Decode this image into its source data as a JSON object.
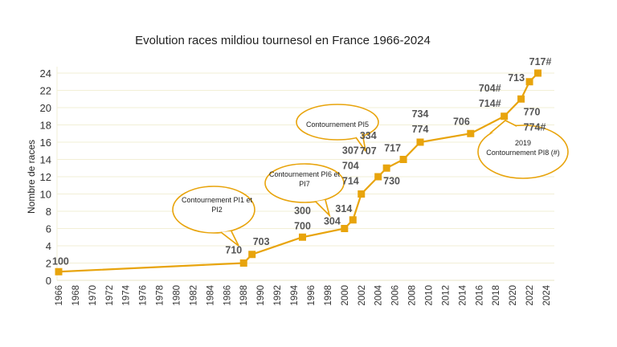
{
  "chart_data": {
    "type": "line",
    "title": "Evolution races mildiou tournesol en France 1966-2024",
    "xlabel": "",
    "ylabel": "Nombre de races",
    "xlim": [
      1966,
      2024
    ],
    "ylim": [
      0,
      24
    ],
    "xticks": [
      1966,
      1968,
      1970,
      1972,
      1974,
      1976,
      1978,
      1980,
      1982,
      1984,
      1986,
      1988,
      1990,
      1992,
      1994,
      1996,
      1998,
      2000,
      2002,
      2004,
      2006,
      2008,
      2010,
      2012,
      2014,
      2016,
      2018,
      2020,
      2022,
      2024
    ],
    "yticks": [
      0,
      2,
      4,
      6,
      8,
      10,
      12,
      14,
      16,
      18,
      20,
      22,
      24
    ],
    "grid": "horizontal",
    "series": [
      {
        "name": "Nombre de races",
        "color": "#e8a40c",
        "marker": "square",
        "x": [
          1966,
          1988,
          1989,
          1995,
          2000,
          2001,
          2002,
          2004,
          2005,
          2007,
          2009,
          2015,
          2019,
          2021,
          2022,
          2023
        ],
        "y": [
          1,
          2,
          3,
          5,
          6,
          7,
          10,
          12,
          13,
          14,
          16,
          17,
          19,
          21,
          23,
          24
        ]
      }
    ],
    "point_labels": [
      {
        "x": 1966,
        "y": 1,
        "lines": [
          "100"
        ],
        "pos": "above"
      },
      {
        "x": 1988,
        "y": 2,
        "lines": [
          "710"
        ],
        "pos": "above-left"
      },
      {
        "x": 1989,
        "y": 3,
        "lines": [
          "703"
        ],
        "pos": "above"
      },
      {
        "x": 1995,
        "y": 5,
        "lines": [
          "300",
          "700"
        ],
        "pos": "above"
      },
      {
        "x": 2000,
        "y": 6,
        "lines": [
          "304"
        ],
        "pos": "above-left"
      },
      {
        "x": 2001,
        "y": 7,
        "lines": [
          "314"
        ],
        "pos": "above-left"
      },
      {
        "x": 2002,
        "y": 10,
        "lines": [
          "307",
          "704",
          "714"
        ],
        "pos": "above-left"
      },
      {
        "x": 2004,
        "y": 12,
        "lines": [
          "334",
          "707"
        ],
        "pos": "above-left"
      },
      {
        "x": 2005,
        "y": 13,
        "lines": [
          "730"
        ],
        "pos": "below-right"
      },
      {
        "x": 2007,
        "y": 14,
        "lines": [
          "717"
        ],
        "pos": "above"
      },
      {
        "x": 2009,
        "y": 16,
        "lines": [
          "734",
          "774"
        ],
        "pos": "above"
      },
      {
        "x": 2015,
        "y": 17,
        "lines": [
          "706"
        ],
        "pos": "above"
      },
      {
        "x": 2019,
        "y": 19,
        "lines": [
          "704#",
          "714#"
        ],
        "pos": "above"
      },
      {
        "x": 2021,
        "y": 21,
        "lines": [
          "770",
          "774#"
        ],
        "pos": "below-right"
      },
      {
        "x": 2022,
        "y": 23,
        "lines": [
          "713"
        ],
        "pos": "left"
      },
      {
        "x": 2023,
        "y": 24,
        "lines": [
          "717#"
        ],
        "pos": "above"
      }
    ],
    "annotations": [
      {
        "lines": [
          "Contournement PI1  et",
          "PI2"
        ],
        "points_to": {
          "x": 1988,
          "y": 2
        }
      },
      {
        "lines": [
          "Contournement PI6  et",
          "PI7"
        ],
        "points_to": {
          "x": 2000,
          "y": 6
        }
      },
      {
        "lines": [
          "Contournement PI5"
        ],
        "points_to": {
          "x": 2002,
          "y": 10
        }
      },
      {
        "lines": [
          "2019",
          "Contournement PI8  (#)"
        ],
        "points_to": {
          "x": 2019,
          "y": 19
        }
      }
    ]
  }
}
